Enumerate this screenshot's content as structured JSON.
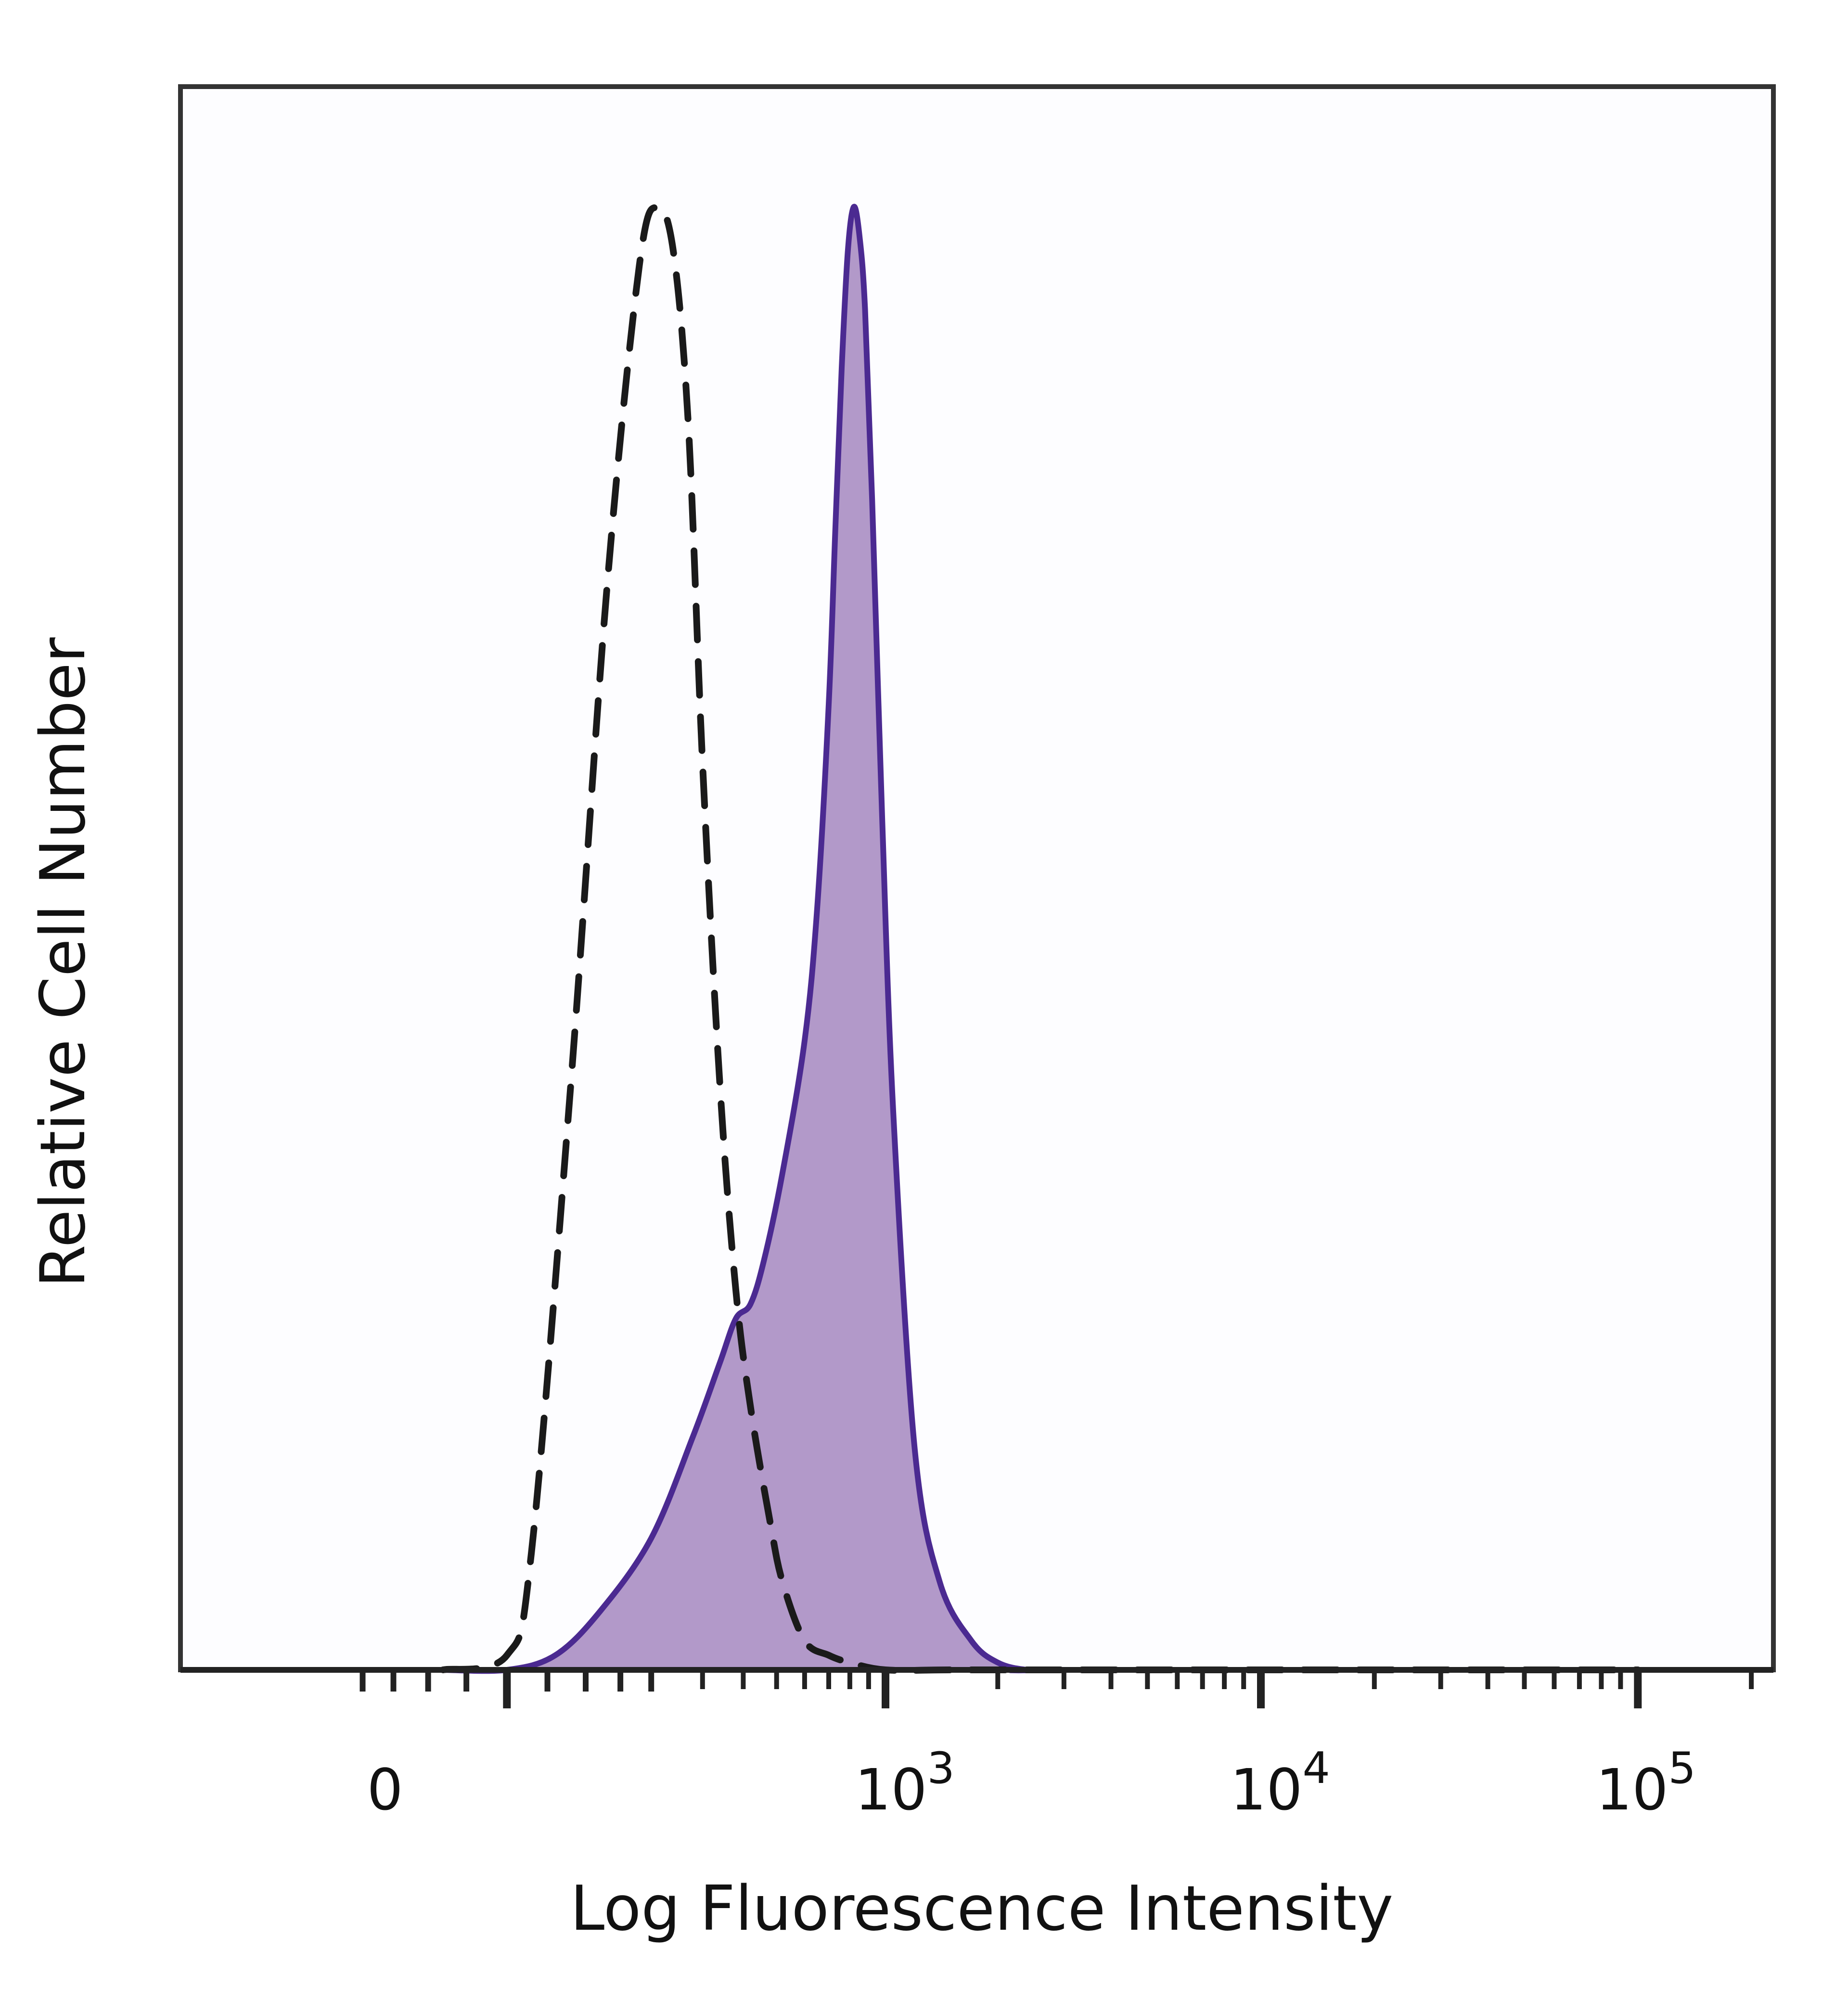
{
  "chart_data": {
    "type": "area",
    "xlabel": "Log Fluorescence Intensity",
    "ylabel": "Relative Cell Number",
    "x_scale": "biexponential (linear near 0, log above)",
    "x_ticks": [
      {
        "value": 0,
        "label": "0"
      },
      {
        "value": 1000,
        "base": "10",
        "exp": "3"
      },
      {
        "value": 10000,
        "base": "10",
        "exp": "4"
      },
      {
        "value": 100000,
        "base": "10",
        "exp": "5"
      }
    ],
    "xlim": [
      -200,
      250000
    ],
    "ylim": [
      0,
      1.1
    ],
    "grid": false,
    "legend": "none",
    "series": [
      {
        "style": "dashed-outline",
        "color": "#1a1a1a",
        "x": [
          -80,
          0,
          30,
          80,
          130,
          180,
          210,
          240,
          270,
          300,
          340,
          380,
          420,
          480,
          520,
          600,
          700,
          800,
          1000,
          1500,
          3000,
          100000
        ],
        "y": [
          0,
          0.01,
          0.08,
          0.4,
          0.74,
          0.96,
          1.0,
          0.97,
          0.85,
          0.62,
          0.4,
          0.26,
          0.18,
          0.1,
          0.06,
          0.02,
          0.01,
          0.005,
          0,
          0,
          0,
          0
        ]
      },
      {
        "style": "filled",
        "color": "#4b2a91",
        "fill": "#b299c9",
        "x": [
          -80,
          0,
          60,
          120,
          200,
          280,
          340,
          380,
          420,
          460,
          520,
          600,
          650,
          700,
          730,
          760,
          790,
          820,
          850,
          880,
          920,
          980,
          1050,
          1200,
          1400,
          1700,
          2000,
          2400,
          3000,
          100000
        ],
        "y": [
          0,
          0,
          0.01,
          0.04,
          0.09,
          0.16,
          0.21,
          0.24,
          0.25,
          0.28,
          0.34,
          0.43,
          0.52,
          0.66,
          0.78,
          0.89,
          0.97,
          1.0,
          0.98,
          0.93,
          0.8,
          0.58,
          0.38,
          0.15,
          0.06,
          0.02,
          0.005,
          0,
          0,
          0
        ]
      }
    ]
  }
}
